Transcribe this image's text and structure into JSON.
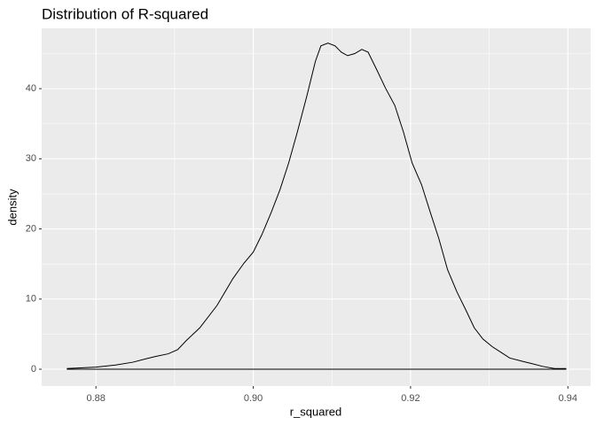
{
  "chart_data": {
    "type": "density",
    "title": "Distribution of R-squared",
    "x_label": "r_squared",
    "y_label": "density",
    "x": [
      0.8763,
      0.88,
      0.8825,
      0.8847,
      0.8864,
      0.8875,
      0.8892,
      0.8904,
      0.8915,
      0.8932,
      0.8954,
      0.8974,
      0.8988,
      0.9,
      0.9011,
      0.9023,
      0.9034,
      0.9045,
      0.9056,
      0.9068,
      0.9079,
      0.9086,
      0.9095,
      0.9104,
      0.9112,
      0.912,
      0.9129,
      0.9138,
      0.9146,
      0.9157,
      0.9168,
      0.918,
      0.9191,
      0.9202,
      0.9214,
      0.9225,
      0.9236,
      0.9247,
      0.9259,
      0.927,
      0.9281,
      0.9292,
      0.9304,
      0.9315,
      0.9326,
      0.9343,
      0.9354,
      0.9368,
      0.9383,
      0.9398
    ],
    "values": [
      0.1,
      0.3,
      0.6,
      1.0,
      1.5,
      1.8,
      2.2,
      2.8,
      4.1,
      5.9,
      9.1,
      12.9,
      15.1,
      16.7,
      19.2,
      22.4,
      25.6,
      29.4,
      33.8,
      38.9,
      43.9,
      46.1,
      46.5,
      46.1,
      45.2,
      44.7,
      45.0,
      45.6,
      45.2,
      42.7,
      40.1,
      37.6,
      33.8,
      29.4,
      26.3,
      22.4,
      18.6,
      14.2,
      11.0,
      8.5,
      5.9,
      4.3,
      3.2,
      2.4,
      1.6,
      1.1,
      0.8,
      0.4,
      0.1,
      0.1
    ],
    "color": "#000000",
    "xlim": [
      0.8731,
      0.9429
    ],
    "ylim": [
      -2.4,
      48.6
    ],
    "xticks": [
      0.88,
      {
        "value": 0.9,
        "label": "0.90"
      },
      0.92,
      0.94
    ],
    "yticks": [
      0,
      10,
      20,
      30,
      40
    ],
    "x_minor_ticks": [
      0.89,
      0.91,
      0.93
    ],
    "y_minor_ticks": [
      5,
      15,
      25,
      35,
      45
    ],
    "grid": true
  }
}
